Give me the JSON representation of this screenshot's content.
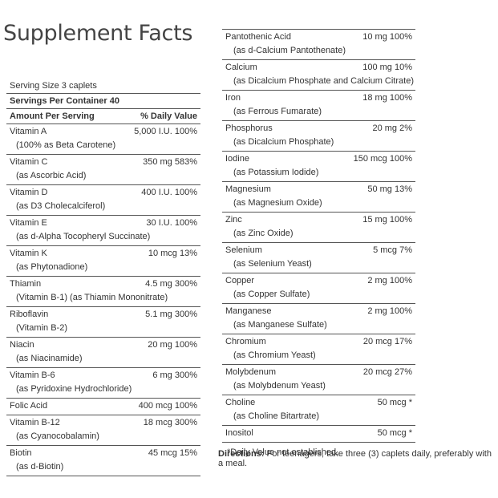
{
  "title": "Supplement Facts",
  "serving_size": "Serving Size 3 caplets",
  "servings_per_container": "Servings Per Container 40",
  "header": {
    "amount": "Amount Per Serving",
    "dv": "% Daily Value"
  },
  "left_rows": [
    {
      "name": "Vitamin A",
      "amount": "5,000 I.U. 100%",
      "source": "(100% as Beta Carotene)"
    },
    {
      "name": "Vitamin C",
      "amount": "350 mg 583%",
      "source": "(as Ascorbic Acid)"
    },
    {
      "name": "Vitamin D",
      "amount": "400 I.U. 100%",
      "source": "(as D3 Cholecalciferol)"
    },
    {
      "name": "Vitamin E",
      "amount": "30 I.U. 100%",
      "source": "(as d-Alpha Tocopheryl Succinate)"
    },
    {
      "name": "Vitamin K",
      "amount": "10 mcg 13%",
      "source": "(as Phytonadione)"
    },
    {
      "name": "Thiamin",
      "amount": "4.5 mg 300%",
      "source": "(Vitamin B-1) (as Thiamin Mononitrate)"
    },
    {
      "name": "Riboflavin",
      "amount": "5.1 mg 300%",
      "source": "(Vitamin B-2)"
    },
    {
      "name": "Niacin",
      "amount": "20 mg 100%",
      "source": "(as Niacinamide)"
    },
    {
      "name": "Vitamin B-6",
      "amount": "6 mg 300%",
      "source": "(as Pyridoxine Hydrochloride)"
    },
    {
      "name": "Folic Acid",
      "amount": "400 mcg 100%",
      "source": ""
    },
    {
      "name": "Vitamin B-12",
      "amount": "18 mcg 300%",
      "source": "(as Cyanocobalamin)"
    },
    {
      "name": "Biotin",
      "amount": "45 mcg 15%",
      "source": "(as d-Biotin)"
    }
  ],
  "right_rows": [
    {
      "name": "Pantothenic Acid",
      "amount": "10 mg 100%",
      "source": "(as d-Calcium Pantothenate)"
    },
    {
      "name": "Calcium",
      "amount": "100 mg 10%",
      "source": "(as Dicalcium Phosphate and Calcium Citrate)"
    },
    {
      "name": "Iron",
      "amount": "18 mg 100%",
      "source": "(as Ferrous Fumarate)"
    },
    {
      "name": "Phosphorus",
      "amount": "20 mg 2%",
      "source": "(as Dicalcium Phosphate)"
    },
    {
      "name": "Iodine",
      "amount": "150 mcg 100%",
      "source": "(as Potassium Iodide)"
    },
    {
      "name": "Magnesium",
      "amount": "50 mg 13%",
      "source": "(as Magnesium Oxide)"
    },
    {
      "name": "Zinc",
      "amount": "15 mg 100%",
      "source": "(as Zinc Oxide)"
    },
    {
      "name": "Selenium",
      "amount": "5 mcg 7%",
      "source": "(as Selenium Yeast)"
    },
    {
      "name": "Copper",
      "amount": "2 mg 100%",
      "source": "(as Copper Sulfate)"
    },
    {
      "name": "Manganese",
      "amount": "2 mg 100%",
      "source": "(as Manganese Sulfate)"
    },
    {
      "name": "Chromium",
      "amount": "20 mcg 17%",
      "source": "(as Chromium Yeast)"
    },
    {
      "name": "Molybdenum",
      "amount": "20 mcg 27%",
      "source": "(as Molybdenum Yeast)"
    },
    {
      "name": "Choline",
      "amount": "50 mcg *",
      "source": "(as Choline Bitartrate)"
    },
    {
      "name": "Inositol",
      "amount": "50 mcg *",
      "source": ""
    }
  ],
  "footnote": "*Daily Value not established.",
  "directions": {
    "label": "Directions:",
    "text": " For teenagers, take three (3) caplets daily, preferably with a meal."
  }
}
